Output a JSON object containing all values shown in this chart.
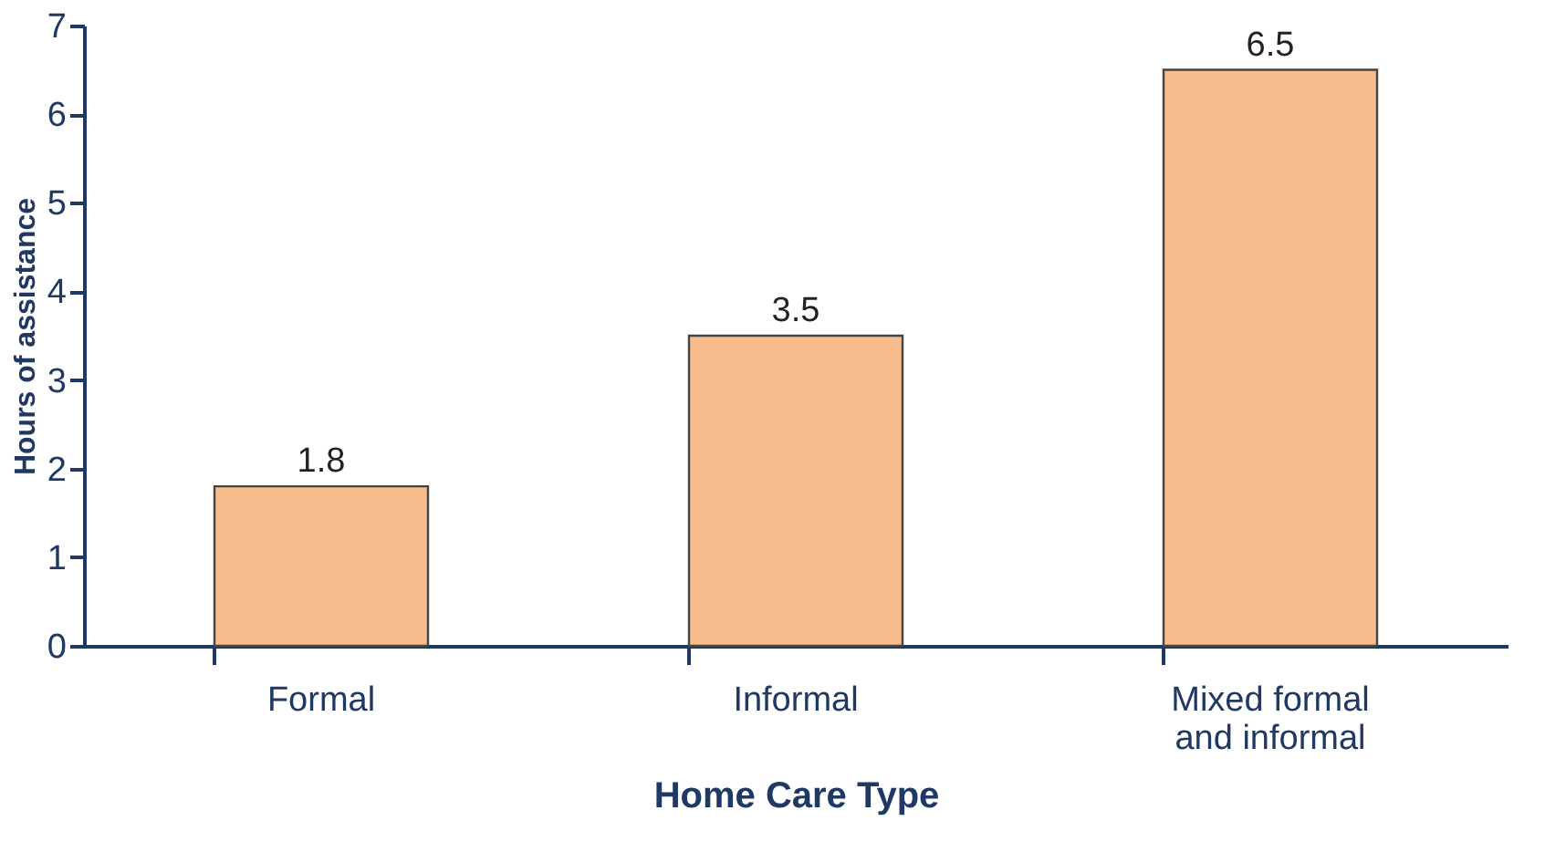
{
  "chart_data": {
    "type": "bar",
    "xlabel": "Home Care Type",
    "ylabel": "Hours of assistance",
    "categories": [
      "Formal",
      "Informal",
      "Mixed formal and informal"
    ],
    "values": [
      1.8,
      3.5,
      6.5
    ],
    "color": "#f8bc8c",
    "ylim": [
      0,
      7
    ],
    "yticks": [
      0,
      1,
      2,
      3,
      4,
      5,
      6,
      7
    ],
    "grid": false,
    "data_labels": true
  }
}
